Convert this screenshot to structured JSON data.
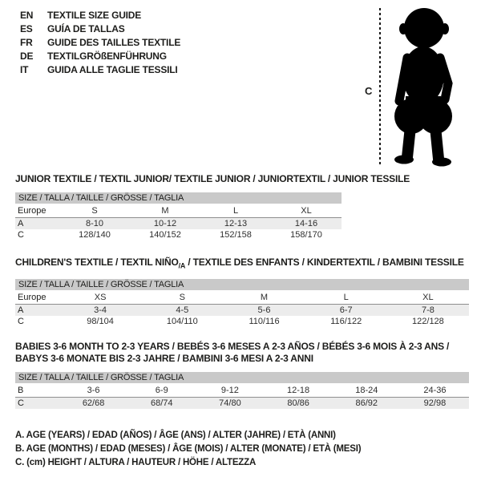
{
  "header": {
    "languages": [
      {
        "code": "EN",
        "label": "TEXTILE SIZE GUIDE"
      },
      {
        "code": "ES",
        "label": "GUÍA DE TALLAS"
      },
      {
        "code": "FR",
        "label": "GUIDE DES TAILLES TEXTILE"
      },
      {
        "code": "DE",
        "label": "TEXTILGRÖßENFÜHRUNG"
      },
      {
        "code": "IT",
        "label": "GUIDA ALLE TAGLIE TESSILI"
      }
    ]
  },
  "figure": {
    "height_marker": "C",
    "icon": "baby-silhouette",
    "silhouette_color": "#000000"
  },
  "colors": {
    "size_bar_bg": "#c9c9c9",
    "shaded_row_bg": "#ececec",
    "text": "#1d1d1b"
  },
  "tables": [
    {
      "title_lines": [
        [
          {
            "text": "JUNIOR TEXTILE / TEXTIL JUNIOR/ TEXTILE JUNIOR / JUNIORTEXTIL / JUNIOR TESSILE"
          }
        ]
      ],
      "size_header": "SIZE / TALLA / TAILLE / GRÖSSE / TAGLIA",
      "rows": [
        {
          "label": "Europe",
          "values": [
            "S",
            "M",
            "L",
            "XL"
          ]
        },
        {
          "label": "A",
          "values": [
            "8-10",
            "10-12",
            "12-13",
            "14-16"
          ]
        },
        {
          "label": "C",
          "values": [
            "128/140",
            "140/152",
            "152/158",
            "158/170"
          ]
        }
      ]
    },
    {
      "title_lines": [
        [
          {
            "text": "CHILDREN'S TEXTILE / TEXTIL NIÑO"
          },
          {
            "text": "/A",
            "sub": true
          },
          {
            "text": " / TEXTILE DES ENFANTS / KINDERTEXTIL / BAMBINI TESSILE"
          }
        ]
      ],
      "size_header": "SIZE / TALLA / TAILLE / GRÖSSE / TAGLIA",
      "rows": [
        {
          "label": "Europe",
          "values": [
            "XS",
            "S",
            "M",
            "L",
            "XL"
          ]
        },
        {
          "label": "A",
          "values": [
            "3-4",
            "4-5",
            "5-6",
            "6-7",
            "7-8"
          ]
        },
        {
          "label": "C",
          "values": [
            "98/104",
            "104/110",
            "110/116",
            "116/122",
            "122/128"
          ]
        }
      ]
    },
    {
      "title_lines": [
        [
          {
            "text": "BABIES 3-6 MONTH TO 2-3 YEARS / BEBÉS 3-6 MESES A 2-3 AÑOS / BÉBÉS 3-6 MOIS À 2-3 ANS /"
          }
        ],
        [
          {
            "text": "BABYS 3-6 MONATE BIS 2-3 JAHRE / BAMBINI 3-6 MESI A 2-3 ANNI"
          }
        ]
      ],
      "size_header": "SIZE / TALLA / TAILLE / GRÖSSE / TAGLIA",
      "rows": [
        {
          "label": "B",
          "values": [
            "3-6",
            "6-9",
            "9-12",
            "12-18",
            "18-24",
            "24-36"
          ]
        },
        {
          "label": "C",
          "values": [
            "62/68",
            "68/74",
            "74/80",
            "80/86",
            "86/92",
            "92/98"
          ]
        }
      ]
    }
  ],
  "footnotes": [
    "A. AGE (YEARS) / EDAD (AÑOS) / ÂGE (ANS) / ALTER (JAHRE) / ETÀ (ANNI)",
    "B. AGE (MONTHS) / EDAD (MESES) / ÂGE (MOIS) / ALTER (MONATE) / ETÀ (MESI)",
    "C. (cm) HEIGHT / ALTURA / HAUTEUR / HÖHE / ALTEZZA"
  ]
}
